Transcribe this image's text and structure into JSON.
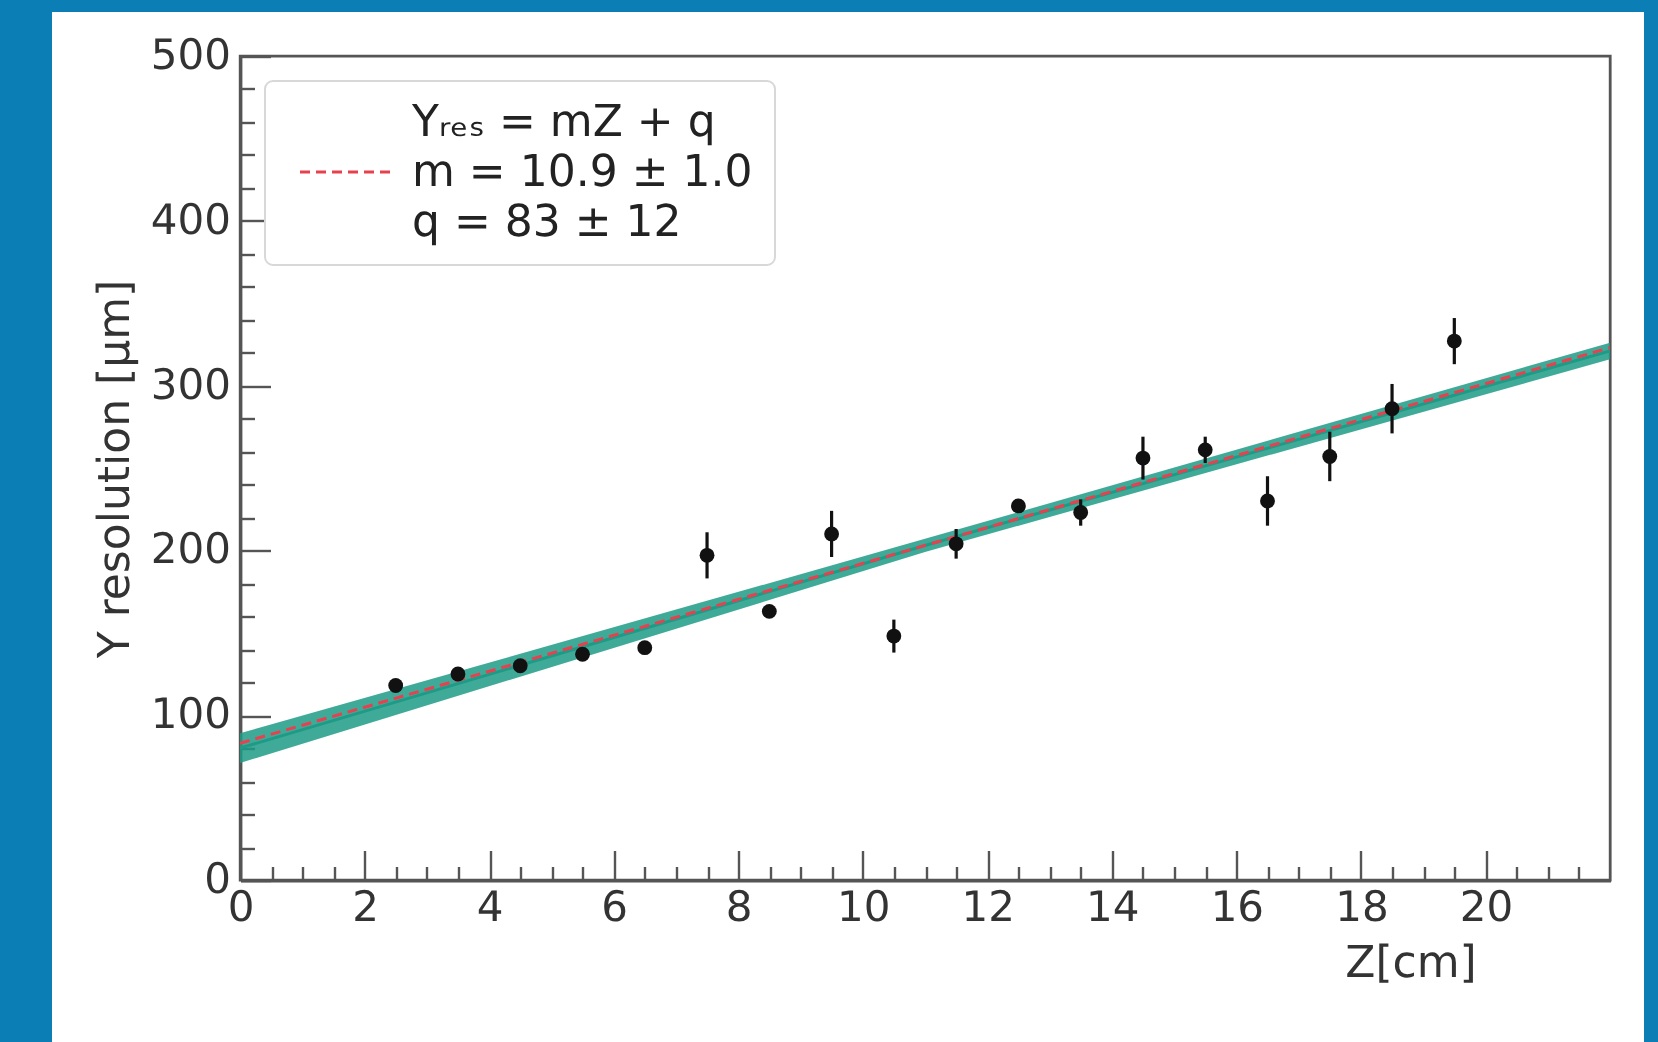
{
  "chart_data": {
    "type": "scatter",
    "xlabel": "Z[cm]",
    "ylabel": "Y resolution [μm]",
    "xlim": [
      0,
      22
    ],
    "ylim": [
      0,
      500
    ],
    "xticks": [
      0,
      {
        "value": 0.5,
        "label": null
      },
      {
        "value": 1,
        "label": null
      },
      {
        "value": 1.5,
        "label": null
      },
      2,
      {
        "value": 2.5,
        "label": null
      },
      {
        "value": 3,
        "label": null
      },
      {
        "value": 3.5,
        "label": null
      },
      4,
      {
        "value": 4.5,
        "label": null
      },
      {
        "value": 5,
        "label": null
      },
      {
        "value": 5.5,
        "label": null
      },
      6,
      {
        "value": 6.5,
        "label": null
      },
      {
        "value": 7,
        "label": null
      },
      {
        "value": 7.5,
        "label": null
      },
      8,
      {
        "value": 8.5,
        "label": null
      },
      {
        "value": 9,
        "label": null
      },
      {
        "value": 9.5,
        "label": null
      },
      10,
      {
        "value": 10.5,
        "label": null
      },
      {
        "value": 11,
        "label": null
      },
      {
        "value": 11.5,
        "label": null
      },
      12,
      {
        "value": 12.5,
        "label": null
      },
      {
        "value": 13,
        "label": null
      },
      {
        "value": 13.5,
        "label": null
      },
      14,
      {
        "value": 14.5,
        "label": null
      },
      {
        "value": 15,
        "label": null
      },
      {
        "value": 15.5,
        "label": null
      },
      16,
      {
        "value": 16.5,
        "label": null
      },
      {
        "value": 17,
        "label": null
      },
      {
        "value": 17.5,
        "label": null
      },
      18,
      {
        "value": 18.5,
        "label": null
      },
      {
        "value": 19,
        "label": null
      },
      {
        "value": 19.5,
        "label": null
      },
      20,
      {
        "value": 20.5,
        "label": null
      },
      {
        "value": 21,
        "label": null
      },
      {
        "value": 21.5,
        "label": null
      }
    ],
    "yticks": [
      0,
      {
        "value": 20,
        "label": null
      },
      {
        "value": 40,
        "label": null
      },
      {
        "value": 60,
        "label": null
      },
      {
        "value": 80,
        "label": null
      },
      100,
      {
        "value": 120,
        "label": null
      },
      {
        "value": 140,
        "label": null
      },
      {
        "value": 160,
        "label": null
      },
      {
        "value": 180,
        "label": null
      },
      200,
      {
        "value": 220,
        "label": null
      },
      {
        "value": 240,
        "label": null
      },
      {
        "value": 260,
        "label": null
      },
      {
        "value": 280,
        "label": null
      },
      300,
      {
        "value": 320,
        "label": null
      },
      {
        "value": 340,
        "label": null
      },
      {
        "value": 360,
        "label": null
      },
      {
        "value": 380,
        "label": null
      },
      400,
      {
        "value": 420,
        "label": null
      },
      {
        "value": 440,
        "label": null
      },
      {
        "value": 460,
        "label": null
      },
      {
        "value": 480,
        "label": null
      },
      500
    ],
    "grid": false,
    "legend": "top left",
    "marker": "circle",
    "series": [
      {
        "type": "line",
        "marker": "none",
        "color": "#1e9b86",
        "x": [
          0,
          11,
          22
        ],
        "values": [
          80,
          203,
          321
        ],
        "lower": [
          71,
          199,
          316
        ],
        "upper": [
          89,
          207,
          326
        ]
      },
      {
        "type": "line",
        "marker": "none",
        "name": "Yᵣₑₛ = mZ + q\nm = 10.9 ± 1.0\nq = 83 ± 12",
        "color": "#e8404f",
        "line_style": "dashed",
        "x": [
          0,
          22
        ],
        "values": [
          83,
          323
        ]
      },
      {
        "color": "#111111",
        "x": [
          2.5,
          3.5,
          4.5,
          5.5,
          6.5,
          7.5,
          8.5,
          9.5,
          10.5,
          11.5,
          12.5,
          13.5,
          14.5,
          15.5,
          16.5,
          17.5,
          18.5,
          19.5
        ],
        "values": [
          118,
          125,
          130,
          137,
          141,
          197,
          163,
          210,
          148,
          204,
          227,
          223,
          256,
          261,
          230,
          257,
          286,
          327
        ],
        "errors": [
          null,
          null,
          null,
          null,
          null,
          14,
          null,
          14,
          10,
          9,
          null,
          8,
          13,
          8,
          15,
          15,
          15,
          14
        ]
      }
    ]
  }
}
